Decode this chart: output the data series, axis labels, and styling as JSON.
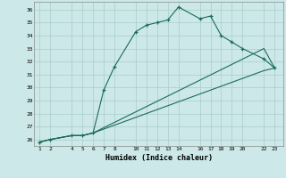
{
  "xlabel": "Humidex (Indice chaleur)",
  "bg_color": "#cce8e8",
  "grid_color": "#aacccc",
  "line_color": "#1a6b5a",
  "line1_x": [
    1,
    2,
    4,
    5,
    6,
    7,
    8,
    10,
    11,
    12,
    13,
    14,
    16,
    17,
    18,
    19,
    20,
    22,
    23
  ],
  "line1_y": [
    25.8,
    26.0,
    26.3,
    26.3,
    26.5,
    29.8,
    31.6,
    34.3,
    34.8,
    35.0,
    35.2,
    36.2,
    35.3,
    35.5,
    34.0,
    33.5,
    33.0,
    32.2,
    31.5
  ],
  "line2_x": [
    1,
    2,
    4,
    5,
    6,
    22,
    23
  ],
  "line2_y": [
    25.8,
    26.0,
    26.3,
    26.3,
    26.5,
    33.0,
    31.5
  ],
  "line3_x": [
    1,
    2,
    4,
    5,
    6,
    22,
    23
  ],
  "line3_y": [
    25.8,
    26.0,
    26.3,
    26.3,
    26.5,
    31.3,
    31.5
  ],
  "ylim": [
    25.5,
    36.6
  ],
  "xlim": [
    0.5,
    23.8
  ],
  "yticks": [
    26,
    27,
    28,
    29,
    30,
    31,
    32,
    33,
    34,
    35,
    36
  ],
  "xticks": [
    1,
    2,
    4,
    5,
    6,
    7,
    8,
    10,
    11,
    12,
    13,
    14,
    16,
    17,
    18,
    19,
    20,
    22,
    23
  ]
}
